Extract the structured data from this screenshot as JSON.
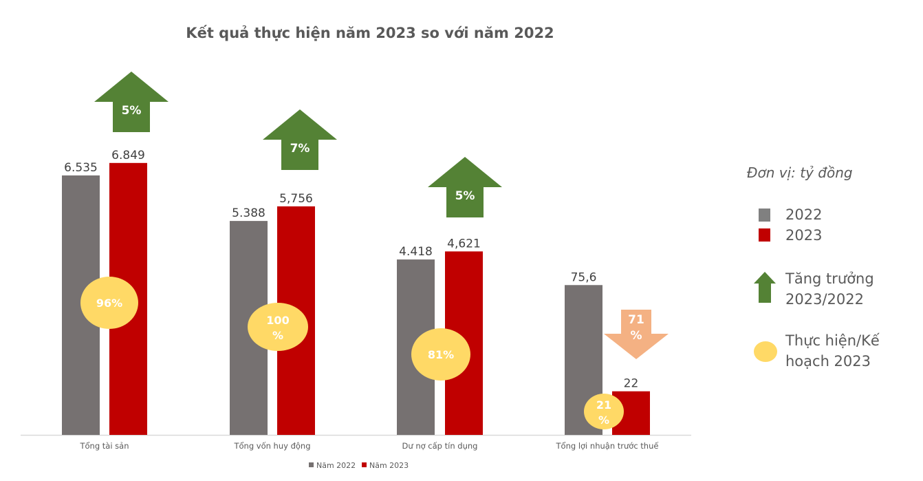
{
  "chart_data": {
    "type": "bar",
    "title": "Kết quả thực hiện năm 2023 so với năm 2022",
    "unit_note": "Đơn vị: tỷ đồng",
    "categories": [
      "Tổng tài sản",
      "Tổng vốn huy động",
      "Dư nợ cấp tín dụng",
      "Tổng lợi nhuận trước thuế"
    ],
    "series": [
      {
        "name": "Năm 2022",
        "color": "#767171",
        "values": [
          6535,
          5388,
          4418,
          75.6
        ],
        "labels": [
          "6.535",
          "5.388",
          "4.418",
          "75,6"
        ]
      },
      {
        "name": "Năm 2023",
        "color": "#C00000",
        "values": [
          6849,
          5756,
          4621,
          22
        ],
        "labels": [
          "6.849",
          "5,756",
          "4,621",
          "22"
        ]
      }
    ],
    "growth": [
      {
        "label": "5%",
        "direction": "up",
        "color": "#548235"
      },
      {
        "label": "7%",
        "direction": "up",
        "color": "#548235"
      },
      {
        "label": "5%",
        "direction": "up",
        "color": "#548235"
      },
      {
        "label": "71 %",
        "direction": "down",
        "color": "#F4B183"
      }
    ],
    "plan_completion": {
      "color": "#FFD966",
      "labels": [
        "96%",
        "100 %",
        "81%",
        "21 %"
      ]
    },
    "bottom_legend": [
      "Năm 2022",
      "Năm 2023"
    ],
    "side_legend": {
      "year_2022": "2022",
      "year_2023": "2023",
      "growth": [
        "Tăng trưởng",
        "2023/2022"
      ],
      "plan": [
        "Thực hiện/Kế",
        "hoạch 2023"
      ]
    },
    "grid": false
  }
}
